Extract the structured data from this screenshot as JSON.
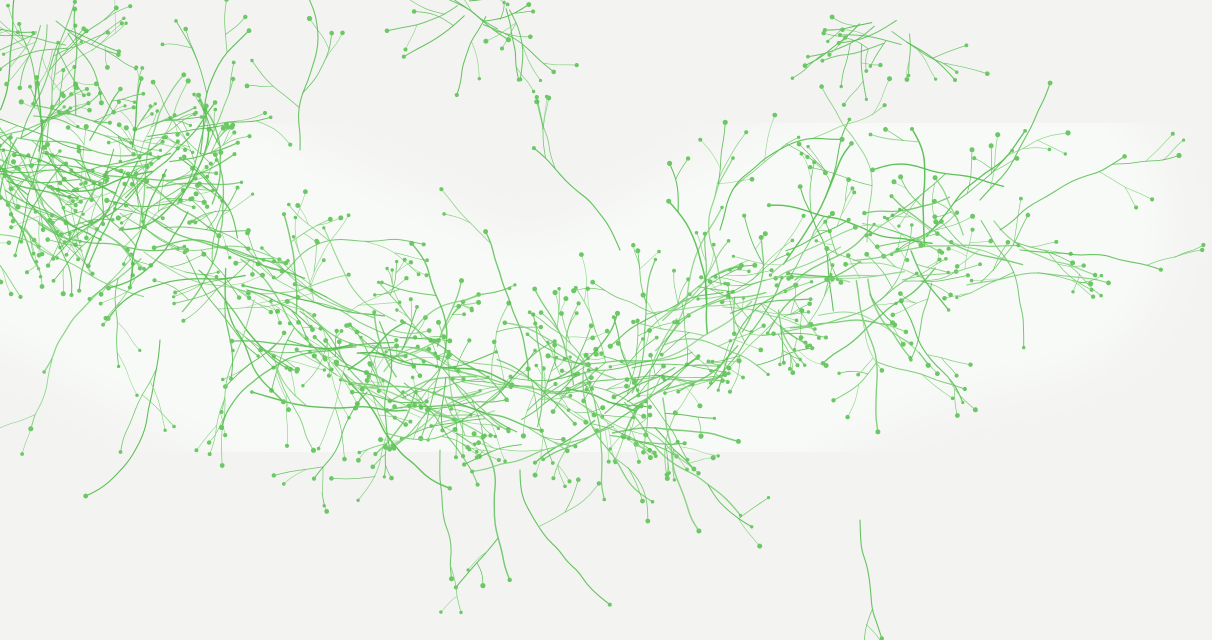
{
  "scene": {
    "subject": "green-tendril-growth",
    "colors": {
      "background": "#f3f3f2",
      "halo": "#f8faf7",
      "halo_edge": "#eef2ec",
      "strand": "#59be52",
      "strand_light": "#7fd079",
      "tip": "#6cc765"
    }
  }
}
